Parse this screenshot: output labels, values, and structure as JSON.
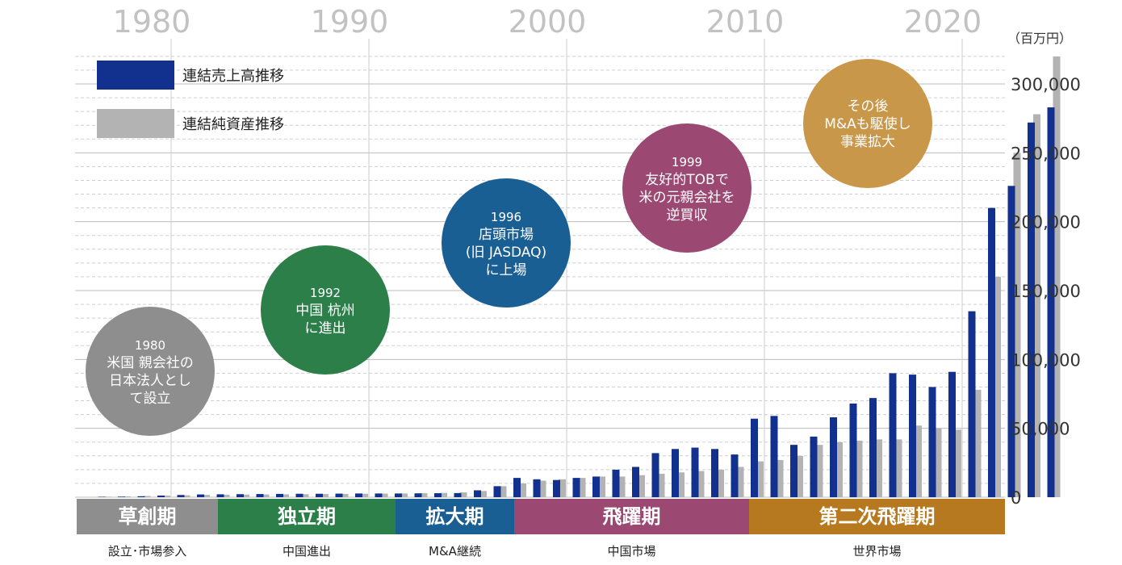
{
  "chart_data": {
    "type": "bar",
    "unit_label": "（百万円）",
    "decade_labels": [
      "1980",
      "1990",
      "2000",
      "2010",
      "2020"
    ],
    "y_ticks": [
      "0",
      "50,000",
      "100,000",
      "150,000",
      "200,000",
      "250,000",
      "300,000"
    ],
    "ylim": [
      0,
      320000
    ],
    "x_start_year": 1977,
    "series": [
      {
        "name": "連結売上高推移",
        "color": "#12318f",
        "values": [
          300,
          400,
          700,
          1200,
          1600,
          2000,
          2100,
          2200,
          2300,
          2400,
          2500,
          2500,
          2600,
          2700,
          2700,
          2700,
          2800,
          2900,
          3000,
          5000,
          8000,
          14000,
          13000,
          12500,
          14000,
          15000,
          20000,
          22000,
          32000,
          35000,
          36000,
          35000,
          31000,
          57000,
          59000,
          38000,
          44000,
          58000,
          68000,
          72000,
          90000,
          89000,
          80000,
          91000,
          135000,
          210000,
          226000,
          272000,
          283000
        ]
      },
      {
        "name": "連結純資産推移",
        "color": "#b3b3b3",
        "values": [
          400,
          600,
          900,
          1200,
          1400,
          1700,
          1800,
          1900,
          2000,
          2100,
          2200,
          2300,
          2400,
          2500,
          2600,
          2700,
          2900,
          3100,
          3500,
          4500,
          8000,
          10000,
          12000,
          13000,
          14000,
          15000,
          15000,
          16000,
          17000,
          18000,
          19000,
          20000,
          22000,
          26000,
          27000,
          30000,
          38000,
          40000,
          41000,
          42000,
          42000,
          52000,
          50000,
          49000,
          78000,
          160000,
          250000,
          278000,
          320000
        ]
      }
    ]
  },
  "legend": [
    {
      "label": "連結売上高推移",
      "color": "#12318f"
    },
    {
      "label": "連結純資産推移",
      "color": "#b3b3b3"
    }
  ],
  "phases": [
    {
      "label": "草創期",
      "sub": "設立･市場参入",
      "color": "#8e8e8e"
    },
    {
      "label": "独立期",
      "sub": "中国進出",
      "color": "#2d7f4a"
    },
    {
      "label": "拡大期",
      "sub": "M&A継続",
      "color": "#1a5f93"
    },
    {
      "label": "飛躍期",
      "sub": "中国市場",
      "color": "#9b4872"
    },
    {
      "label": "第二次飛躍期",
      "sub": "世界市場",
      "color": "#b7791f"
    }
  ],
  "milestones": [
    {
      "year": "1980",
      "lines": [
        "米国 親会社の",
        "日本法人とし",
        "て設立"
      ],
      "color": "#8e8e8e"
    },
    {
      "year": "1992",
      "lines": [
        "中国 杭州",
        "に進出"
      ],
      "color": "#2d7f4a"
    },
    {
      "year": "1996",
      "lines": [
        "店頭市場",
        "(旧 JASDAQ)",
        "に上場"
      ],
      "color": "#1a5f93"
    },
    {
      "year": "1999",
      "lines": [
        "友好的TOBで",
        "米の元親会社を",
        "逆買収"
      ],
      "color": "#9b4872"
    },
    {
      "year": "",
      "lines": [
        "その後",
        "M&Aも駆使し",
        "事業拡大"
      ],
      "color": "#c9974a"
    }
  ]
}
